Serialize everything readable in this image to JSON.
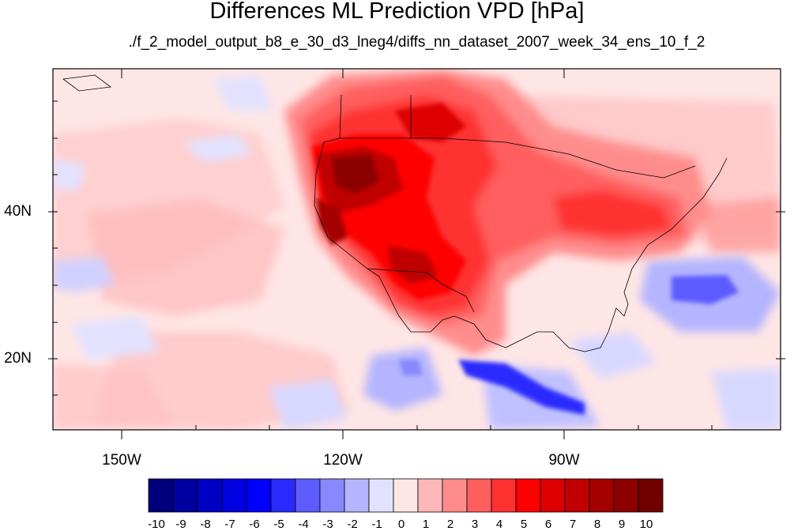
{
  "title": "Differences ML Prediction VPD [hPa]",
  "subtitle": "./f_2_model_output_b8_e_30_d3_lneg4/diffs_nn_dataset_2007_week_34_ens_10_f_2",
  "lat_labels": [
    "40N",
    "20N"
  ],
  "lon_labels": [
    "150W",
    "120W",
    "90W"
  ],
  "colorbar": {
    "labels": [
      "-10",
      "-9",
      "-8",
      "-7",
      "-6",
      "-5",
      "-4",
      "-3",
      "-2",
      "-1",
      "0",
      "1",
      "2",
      "3",
      "4",
      "5",
      "6",
      "7",
      "8",
      "9",
      "10"
    ],
    "colors": [
      "#00007c",
      "#0000a0",
      "#0000c4",
      "#0000e0",
      "#0000ff",
      "#2a2aff",
      "#5c5cff",
      "#8888ff",
      "#b4b4ff",
      "#e2e2ff",
      "#ffe6e6",
      "#ffb8b8",
      "#ff8c8c",
      "#ff5e5e",
      "#ff3030",
      "#ff0000",
      "#dd0000",
      "#c00000",
      "#a40000",
      "#8c0000",
      "#700000"
    ]
  }
}
